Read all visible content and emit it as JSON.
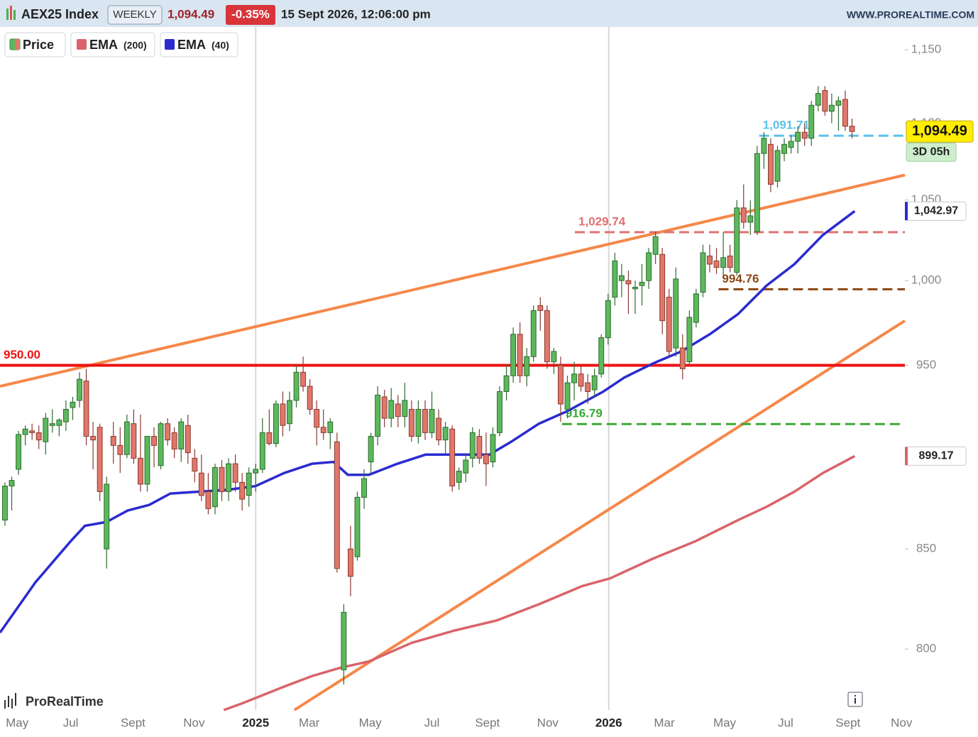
{
  "header": {
    "symbol": "AEX25 Index",
    "period": "WEEKLY",
    "last": "1,094.49",
    "change": "-0.35%",
    "datetime": "15 Sept 2026, 12:06:00 pm",
    "site": "WWW.PROREALTIME.COM"
  },
  "footer": {
    "brand": "ProRealTime"
  },
  "chart_data": {
    "type": "candlestick",
    "log_scale": true,
    "xlim": [
      -0.73,
      132.8
    ],
    "ylim": [
      771,
      1166
    ],
    "xticks": [
      {
        "value": 1.8,
        "label": "May"
      },
      {
        "value": 9.7,
        "label": "Jul"
      },
      {
        "value": 18.9,
        "label": "Sept"
      },
      {
        "value": 27.9,
        "label": "Nov"
      },
      {
        "value": 37,
        "label": "2025",
        "major": true
      },
      {
        "value": 44.9,
        "label": "Mar"
      },
      {
        "value": 53.9,
        "label": "May"
      },
      {
        "value": 63,
        "label": "Jul"
      },
      {
        "value": 71.2,
        "label": "Sept"
      },
      {
        "value": 80.1,
        "label": "Nov"
      },
      {
        "value": 89.1,
        "label": "2026",
        "major": true
      },
      {
        "value": 97.3,
        "label": "Mar"
      },
      {
        "value": 106.2,
        "label": "May"
      },
      {
        "value": 115.2,
        "label": "Jul"
      },
      {
        "value": 124.4,
        "label": "Sept"
      },
      {
        "value": 132.3,
        "label": "Nov"
      }
    ],
    "yticks": [
      800,
      850,
      950,
      {
        "value": 1000,
        "label": "1,000"
      },
      {
        "value": 1050,
        "label": "1,050"
      },
      {
        "value": 1100,
        "label": "1,100"
      },
      {
        "value": 1150,
        "label": "1,150"
      }
    ],
    "series": [
      {
        "name": "Price",
        "color": "#5cb85c",
        "down_color": "#e0776a",
        "value_label": "1,094.49",
        "countdown": "3D 05h",
        "x": [
          0,
          1,
          2,
          3,
          4,
          5,
          6,
          7,
          8,
          9,
          10,
          11,
          12,
          13,
          14,
          15,
          16,
          17,
          18,
          19,
          20,
          21,
          22,
          23,
          24,
          25,
          26,
          27,
          28,
          29,
          30,
          31,
          32,
          33,
          34,
          35,
          36,
          37,
          38,
          39,
          40,
          41,
          42,
          43,
          44,
          45,
          46,
          47,
          48,
          49,
          50,
          51,
          52,
          53,
          54,
          55,
          56,
          57,
          58,
          59,
          60,
          61,
          62,
          63,
          64,
          65,
          66,
          67,
          68,
          69,
          70,
          71,
          72,
          73,
          74,
          75,
          76,
          77,
          78,
          79,
          80,
          81,
          82,
          83,
          84,
          85,
          86,
          87,
          88,
          89,
          90,
          91,
          92,
          93,
          94,
          95,
          96,
          97,
          98,
          99,
          100,
          101,
          102,
          103,
          104,
          105,
          106,
          107,
          108,
          109,
          110,
          111,
          112,
          113,
          114,
          115,
          116,
          117,
          118,
          119,
          120,
          121,
          122,
          123,
          124,
          125
        ],
        "ohlc": [
          [
            865,
            885,
            862,
            883
          ],
          [
            883,
            888,
            870,
            886
          ],
          [
            892,
            913,
            889,
            911
          ],
          [
            911,
            916,
            905,
            914
          ],
          [
            913,
            917,
            908,
            912
          ],
          [
            912,
            916,
            903,
            908
          ],
          [
            907,
            923,
            900,
            920
          ],
          [
            916,
            925,
            912,
            917
          ],
          [
            916,
            920,
            910,
            919
          ],
          [
            918,
            930,
            913,
            925
          ],
          [
            926,
            932,
            919,
            929
          ],
          [
            930,
            946,
            926,
            942
          ],
          [
            941,
            948,
            905,
            910
          ],
          [
            910,
            918,
            892,
            908
          ],
          [
            915,
            917,
            875,
            880
          ],
          [
            850,
            888,
            840,
            884
          ],
          [
            910,
            918,
            895,
            905
          ],
          [
            905,
            915,
            890,
            900
          ],
          [
            900,
            922,
            898,
            918
          ],
          [
            917,
            925,
            895,
            898
          ],
          [
            898,
            922,
            880,
            884
          ],
          [
            884,
            910,
            880,
            910
          ],
          [
            910,
            915,
            893,
            905
          ],
          [
            894,
            918,
            892,
            917
          ],
          [
            917,
            920,
            905,
            908
          ],
          [
            912,
            915,
            898,
            903
          ],
          [
            903,
            920,
            896,
            918
          ],
          [
            916,
            922,
            895,
            901
          ],
          [
            898,
            903,
            885,
            891
          ],
          [
            890,
            900,
            875,
            878
          ],
          [
            880,
            890,
            868,
            871
          ],
          [
            872,
            895,
            868,
            893
          ],
          [
            893,
            897,
            875,
            880
          ],
          [
            880,
            898,
            875,
            895
          ],
          [
            895,
            900,
            880,
            885
          ],
          [
            885,
            890,
            870,
            876
          ],
          [
            878,
            893,
            872,
            890
          ],
          [
            890,
            895,
            880,
            892
          ],
          [
            892,
            920,
            890,
            912
          ],
          [
            912,
            925,
            905,
            906
          ],
          [
            906,
            930,
            904,
            928
          ],
          [
            928,
            935,
            910,
            916
          ],
          [
            917,
            935,
            913,
            930
          ],
          [
            930,
            950,
            926,
            946
          ],
          [
            946,
            955,
            935,
            938
          ],
          [
            938,
            942,
            922,
            925
          ],
          [
            925,
            930,
            905,
            915
          ],
          [
            915,
            925,
            908,
            912
          ],
          [
            912,
            920,
            903,
            918
          ],
          [
            907,
            912,
            838,
            840
          ],
          [
            790,
            822,
            783,
            818
          ],
          [
            850,
            862,
            826,
            836
          ],
          [
            846,
            880,
            844,
            877
          ],
          [
            877,
            892,
            871,
            887
          ],
          [
            896,
            912,
            890,
            910
          ],
          [
            910,
            938,
            905,
            933
          ],
          [
            932,
            936,
            915,
            920
          ],
          [
            920,
            937,
            915,
            930
          ],
          [
            928,
            933,
            915,
            921
          ],
          [
            921,
            940,
            915,
            930
          ],
          [
            925,
            930,
            907,
            910
          ],
          [
            910,
            930,
            906,
            925
          ],
          [
            925,
            930,
            908,
            912
          ],
          [
            912,
            935,
            909,
            925
          ],
          [
            920,
            925,
            905,
            908
          ],
          [
            908,
            918,
            900,
            915
          ],
          [
            914,
            916,
            880,
            883
          ],
          [
            885,
            893,
            881,
            891
          ],
          [
            890,
            900,
            885,
            897
          ],
          [
            898,
            915,
            893,
            912
          ],
          [
            910,
            914,
            895,
            898
          ],
          [
            900,
            912,
            883,
            895
          ],
          [
            896,
            915,
            893,
            911
          ],
          [
            912,
            938,
            910,
            935
          ],
          [
            935,
            950,
            930,
            944
          ],
          [
            944,
            972,
            940,
            968
          ],
          [
            968,
            975,
            940,
            944
          ],
          [
            944,
            960,
            938,
            955
          ],
          [
            955,
            985,
            952,
            982
          ],
          [
            985,
            990,
            970,
            982
          ],
          [
            982,
            985,
            948,
            952
          ],
          [
            952,
            960,
            945,
            958
          ],
          [
            950,
            955,
            918,
            928
          ],
          [
            925,
            944,
            920,
            940
          ],
          [
            940,
            952,
            930,
            945
          ],
          [
            945,
            950,
            935,
            938
          ],
          [
            940,
            945,
            928,
            935
          ],
          [
            936,
            948,
            932,
            944
          ],
          [
            945,
            968,
            943,
            966
          ],
          [
            966,
            992,
            962,
            988
          ],
          [
            990,
            1017,
            985,
            1012
          ],
          [
            1000,
            1010,
            990,
            1003
          ],
          [
            1000,
            1006,
            980,
            998
          ],
          [
            995,
            1000,
            980,
            996
          ],
          [
            997,
            1010,
            985,
            999
          ],
          [
            1000,
            1020,
            995,
            1017
          ],
          [
            1016,
            1030,
            1010,
            1027
          ],
          [
            1016,
            1020,
            968,
            976
          ],
          [
            990,
            995,
            955,
            958
          ],
          [
            960,
            1008,
            955,
            1001
          ],
          [
            960,
            968,
            942,
            948
          ],
          [
            952,
            982,
            950,
            978
          ],
          [
            975,
            995,
            972,
            992
          ],
          [
            993,
            1022,
            990,
            1017
          ],
          [
            1015,
            1022,
            1005,
            1010
          ],
          [
            1012,
            1020,
            1004,
            1008
          ],
          [
            1008,
            1030,
            1003,
            1014
          ],
          [
            1015,
            1022,
            1005,
            1008
          ],
          [
            1005,
            1050,
            1003,
            1045
          ],
          [
            1045,
            1060,
            1032,
            1036
          ],
          [
            1036,
            1050,
            1028,
            1040
          ],
          [
            1030,
            1085,
            1028,
            1080
          ],
          [
            1080,
            1094,
            1070,
            1090
          ],
          [
            1086,
            1090,
            1055,
            1060
          ],
          [
            1062,
            1085,
            1058,
            1082
          ],
          [
            1080,
            1090,
            1075,
            1086
          ],
          [
            1084,
            1092,
            1080,
            1088
          ],
          [
            1088,
            1098,
            1080,
            1094
          ],
          [
            1094,
            1100,
            1085,
            1090
          ],
          [
            1090,
            1115,
            1085,
            1112
          ],
          [
            1112,
            1125,
            1108,
            1120
          ],
          [
            1122,
            1125,
            1105,
            1108
          ],
          [
            1108,
            1120,
            1100,
            1112
          ],
          [
            1112,
            1118,
            1095,
            1115
          ],
          [
            1116,
            1122,
            1095,
            1098
          ],
          [
            1098,
            1103,
            1090,
            1094.49
          ]
        ]
      },
      {
        "name": "EMA",
        "period": "(200)",
        "color": "#d9646a",
        "value_label": "899.17",
        "x": [
          32.3,
          34.9,
          41.2,
          45.3,
          49.5,
          53.7,
          60,
          66.3,
          72.6,
          78.8,
          85.1,
          89.3,
          95.6,
          101.9,
          108.2,
          112.4,
          116.5,
          120.7,
          125.4
        ],
        "values": [
          771,
          774,
          782,
          787,
          791,
          794,
          803,
          809,
          814,
          822,
          831,
          835,
          845,
          854,
          865,
          872,
          880,
          890,
          899.17
        ]
      },
      {
        "name": "EMA",
        "period": "(40)",
        "color": "#2b2bd0",
        "value_label": "1,042.97",
        "x": [
          -0.73,
          4.5,
          9.7,
          11.8,
          15,
          18.1,
          21.3,
          24.4,
          28.6,
          32.8,
          37,
          41.2,
          45.3,
          48.5,
          50.6,
          53.7,
          57.9,
          62.1,
          66.3,
          71.5,
          74.7,
          78.8,
          83,
          88.3,
          91.4,
          95.6,
          99.8,
          104,
          108.2,
          112.4,
          116.5,
          120.7,
          125.4
        ],
        "values": [
          808,
          833,
          854,
          862,
          864,
          870,
          873,
          879,
          880,
          881,
          883,
          890,
          895,
          896,
          889,
          889,
          895,
          900,
          900,
          900,
          907,
          917,
          924,
          935,
          943,
          951,
          958,
          968,
          980,
          997,
          1010,
          1028,
          1042.97
        ]
      }
    ],
    "trendlines": [
      {
        "color": "#f5884a",
        "x": [
          -0.73,
          132.8
        ],
        "values": [
          938,
          1066
        ]
      },
      {
        "color": "#f5884a",
        "x": [
          42.7,
          132.8
        ],
        "values": [
          771,
          976
        ]
      }
    ],
    "levels": [
      {
        "value": 950,
        "label": "950.00",
        "color": "#ee1111",
        "style": "solid",
        "from": -0.73
      },
      {
        "value": 1029.74,
        "label": "1,029.74",
        "color": "#e07070",
        "style": "dashed",
        "from": 84.1
      },
      {
        "value": 994.76,
        "label": "994.76",
        "color": "#8b4513",
        "style": "dashed",
        "from": 105.3
      },
      {
        "value": 916.79,
        "label": "916.79",
        "color": "#3aaa35",
        "style": "dashed",
        "from": 82.2
      },
      {
        "value": 1091.71,
        "label": "1,091.71",
        "color": "#5bc0eb",
        "style": "dashed",
        "from": 111.3
      }
    ]
  }
}
